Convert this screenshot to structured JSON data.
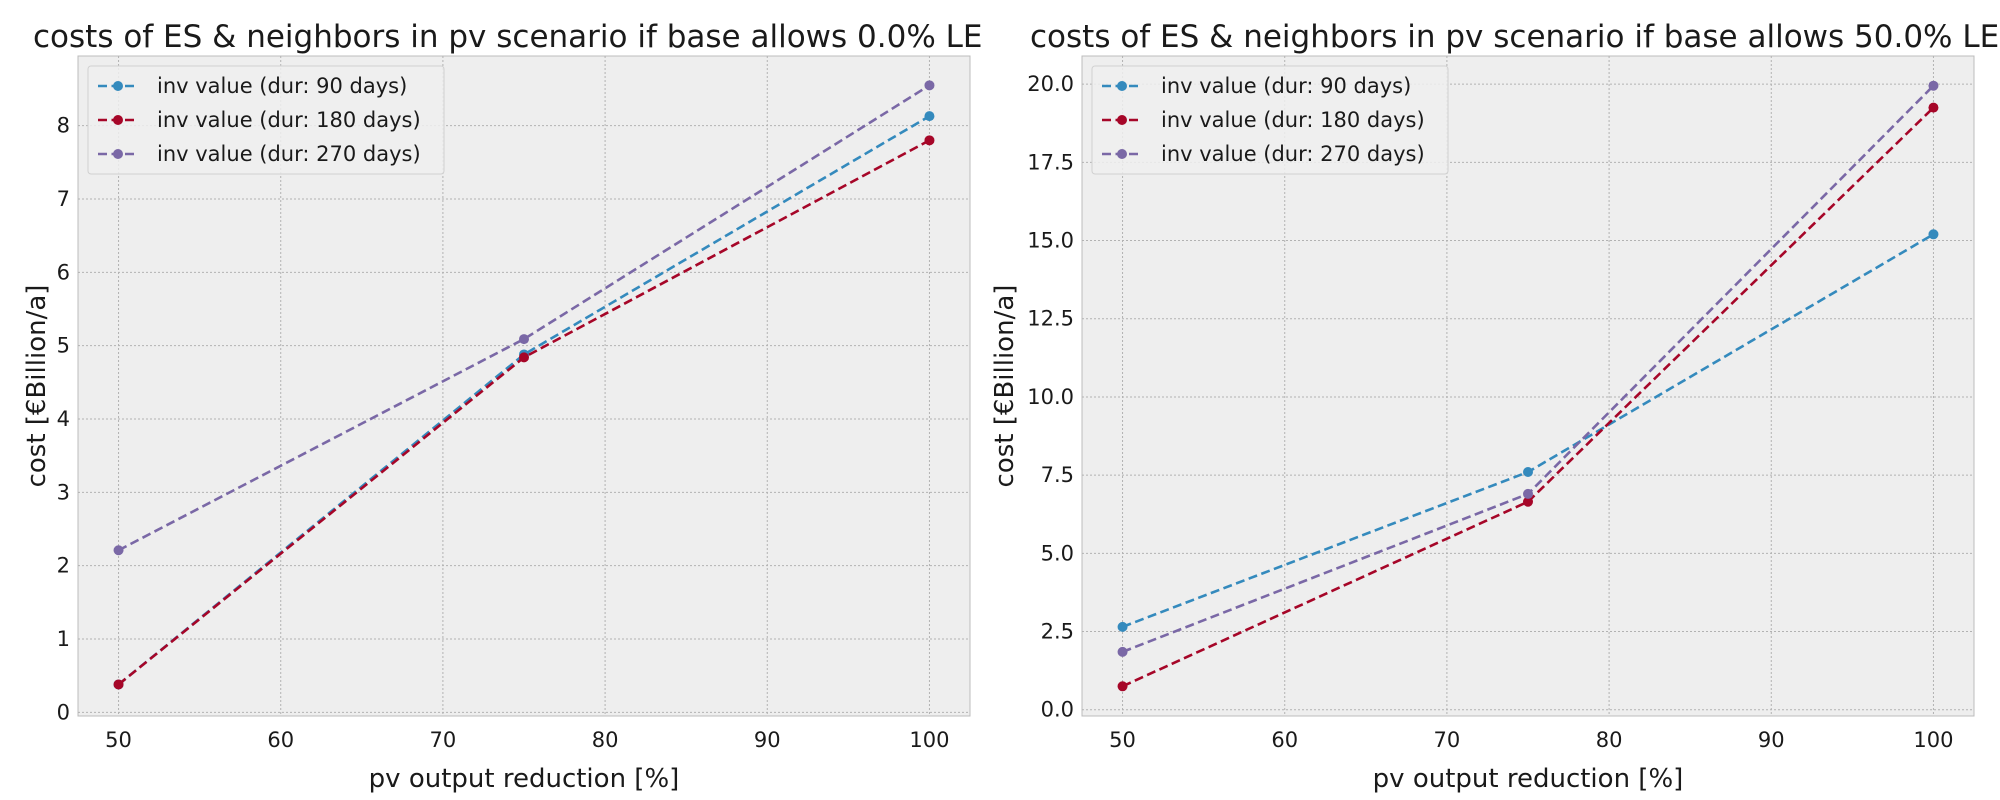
{
  "chart_data": [
    {
      "type": "line",
      "title": "costs of ES & neighbors in pv scenario if base allows 0.0% LE",
      "xlabel": "pv output reduction [%]",
      "ylabel": "cost [€Billion/a]",
      "x": [
        50,
        75,
        100
      ],
      "xlim": [
        47.5,
        102.5
      ],
      "ylim": [
        -0.05,
        8.95
      ],
      "xticks": [
        50,
        60,
        70,
        80,
        90,
        100
      ],
      "yticks": [
        0,
        1,
        2,
        3,
        4,
        5,
        6,
        7,
        8
      ],
      "grid": true,
      "legend_position": "upper-left",
      "series": [
        {
          "name": "inv value (dur: 90 days)",
          "color": "#348abd",
          "values": [
            0.38,
            4.88,
            8.13
          ]
        },
        {
          "name": "inv value (dur: 180 days)",
          "color": "#a60628",
          "values": [
            0.38,
            4.84,
            7.8
          ]
        },
        {
          "name": "inv value (dur: 270 days)",
          "color": "#7a68a6",
          "values": [
            2.21,
            5.09,
            8.55
          ]
        }
      ]
    },
    {
      "type": "line",
      "title": "costs of ES & neighbors in pv scenario if base allows 50.0% LE",
      "xlabel": "pv output reduction [%]",
      "ylabel": "cost [€Billion/a]",
      "x": [
        50,
        75,
        100
      ],
      "xlim": [
        47.5,
        102.5
      ],
      "ylim": [
        -0.2,
        20.9
      ],
      "xticks": [
        50,
        60,
        70,
        80,
        90,
        100
      ],
      "yticks": [
        0.0,
        2.5,
        5.0,
        7.5,
        10.0,
        12.5,
        15.0,
        17.5,
        20.0
      ],
      "ytick_labels": [
        "0.0",
        "2.5",
        "5.0",
        "7.5",
        "10.0",
        "12.5",
        "15.0",
        "17.5",
        "20.0"
      ],
      "grid": true,
      "legend_position": "upper-left",
      "series": [
        {
          "name": "inv value (dur: 90 days)",
          "color": "#348abd",
          "values": [
            2.65,
            7.6,
            15.2
          ]
        },
        {
          "name": "inv value (dur: 180 days)",
          "color": "#a60628",
          "values": [
            0.75,
            6.65,
            19.25
          ]
        },
        {
          "name": "inv value (dur: 270 days)",
          "color": "#7a68a6",
          "values": [
            1.85,
            6.9,
            19.95
          ]
        }
      ]
    }
  ]
}
